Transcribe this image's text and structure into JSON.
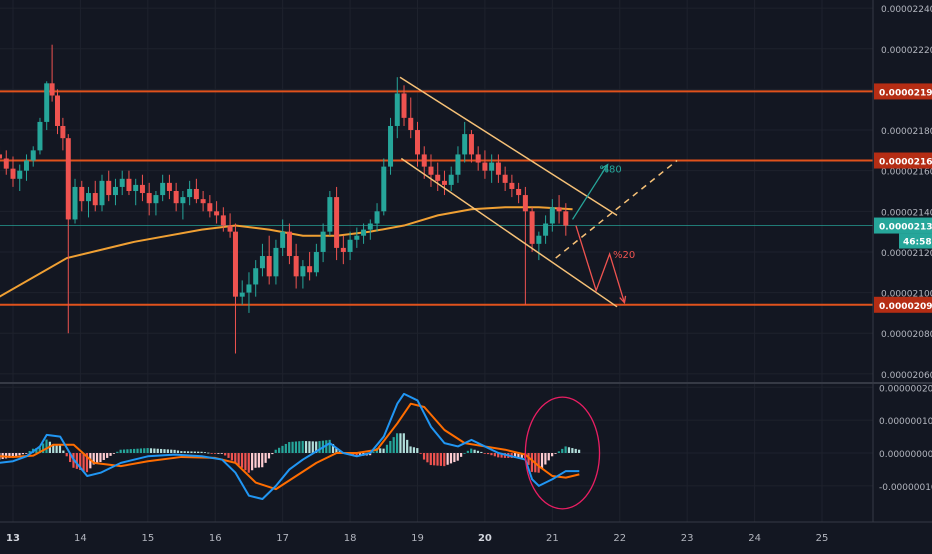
{
  "chart_data": {
    "type": "candlestick",
    "price_axis": {
      "ticks": [
        "0.00002240",
        "0.00002220",
        "0.00002200",
        "0.00002180",
        "0.00002160",
        "0.00002140",
        "0.00002120",
        "0.00002100",
        "0.00002080",
        "0.00002060"
      ],
      "range": [
        2.056e-05,
        2.244e-05
      ]
    },
    "macd_axis": {
      "ticks": [
        "0.00000020",
        "0.00000010",
        "0.00000000",
        "-0.00000010"
      ],
      "range": [
        -2.1e-07,
        2.1e-07
      ]
    },
    "time_axis": {
      "labels": [
        "13",
        "14",
        "15",
        "16",
        "17",
        "18",
        "19",
        "20",
        "21",
        "22",
        "23",
        "24",
        "25"
      ],
      "bold_labels": [
        "13",
        "20"
      ]
    },
    "horizontal_levels": [
      {
        "label": "0.00002199",
        "value": 2.199e-05,
        "color": "#e0521c"
      },
      {
        "label": "0.00002165",
        "value": 2.165e-05,
        "color": "#e0521c"
      },
      {
        "label": "0.00002094",
        "value": 2.094e-05,
        "color": "#e0521c"
      }
    ],
    "current_price": {
      "label": "0.00002133",
      "value": 2.133e-05,
      "countdown": "46:58",
      "color": "#26a69a"
    },
    "moving_average": {
      "color": "#f0a033",
      "points": [
        [
          12.8,
          2.098e-05
        ],
        [
          13.8,
          2.117e-05
        ],
        [
          14.8,
          2.125e-05
        ],
        [
          15.8,
          2.131e-05
        ],
        [
          16.3,
          2.133e-05
        ],
        [
          16.8,
          2.131e-05
        ],
        [
          17.3,
          2.128e-05
        ],
        [
          17.8,
          2.128e-05
        ],
        [
          18.3,
          2.13e-05
        ],
        [
          18.8,
          2.133e-05
        ],
        [
          19.3,
          2.138e-05
        ],
        [
          19.8,
          2.141e-05
        ],
        [
          20.3,
          2.142e-05
        ],
        [
          20.8,
          2.142e-05
        ],
        [
          21.3,
          2.141e-05
        ]
      ]
    },
    "channel": {
      "color": "#f6c177",
      "upper": [
        [
          18.74,
          2.206e-05
        ],
        [
          21.96,
          2.138e-05
        ]
      ],
      "lower": [
        [
          18.76,
          2.166e-05
        ],
        [
          21.96,
          2.093e-05
        ]
      ],
      "dashed": [
        [
          21.05,
          2.117e-05
        ],
        [
          22.85,
          2.165e-05
        ]
      ]
    },
    "annotations": [
      {
        "text": "%80",
        "color": "#26a69a",
        "x": 21.7,
        "y": 2.159e-05
      },
      {
        "text": "%20",
        "color": "#ef5350",
        "x": 21.9,
        "y": 2.117e-05
      }
    ],
    "candles": [
      [
        12.8,
        2.168e-05,
        2.172e-05,
        2.161e-05,
        2.166e-05
      ],
      [
        12.9,
        2.166e-05,
        2.17e-05,
        2.158e-05,
        2.161e-05
      ],
      [
        13.0,
        2.161e-05,
        2.167e-05,
        2.152e-05,
        2.156e-05
      ],
      [
        13.1,
        2.156e-05,
        2.163e-05,
        2.15e-05,
        2.16e-05
      ],
      [
        13.2,
        2.16e-05,
        2.168e-05,
        2.155e-05,
        2.165e-05
      ],
      [
        13.3,
        2.165e-05,
        2.172e-05,
        2.162e-05,
        2.17e-05
      ],
      [
        13.4,
        2.17e-05,
        2.186e-05,
        2.168e-05,
        2.184e-05
      ],
      [
        13.5,
        2.184e-05,
        2.204e-05,
        2.18e-05,
        2.203e-05
      ],
      [
        13.58,
        2.203e-05,
        2.222e-05,
        2.194e-05,
        2.197e-05
      ],
      [
        13.66,
        2.197e-05,
        2.2e-05,
        2.178e-05,
        2.182e-05
      ],
      [
        13.74,
        2.182e-05,
        2.186e-05,
        2.17e-05,
        2.176e-05
      ],
      [
        13.82,
        2.176e-05,
        2.178e-05,
        2.08e-05,
        2.136e-05
      ],
      [
        13.92,
        2.136e-05,
        2.156e-05,
        2.134e-05,
        2.152e-05
      ],
      [
        14.02,
        2.152e-05,
        2.155e-05,
        2.14e-05,
        2.145e-05
      ],
      [
        14.12,
        2.145e-05,
        2.152e-05,
        2.137e-05,
        2.149e-05
      ],
      [
        14.22,
        2.149e-05,
        2.155e-05,
        2.14e-05,
        2.143e-05
      ],
      [
        14.32,
        2.143e-05,
        2.158e-05,
        2.14e-05,
        2.155e-05
      ],
      [
        14.42,
        2.155e-05,
        2.16e-05,
        2.145e-05,
        2.148e-05
      ],
      [
        14.52,
        2.148e-05,
        2.156e-05,
        2.143e-05,
        2.152e-05
      ],
      [
        14.62,
        2.152e-05,
        2.16e-05,
        2.148e-05,
        2.156e-05
      ],
      [
        14.72,
        2.156e-05,
        2.16e-05,
        2.148e-05,
        2.15e-05
      ],
      [
        14.82,
        2.15e-05,
        2.156e-05,
        2.143e-05,
        2.153e-05
      ],
      [
        14.92,
        2.153e-05,
        2.158e-05,
        2.145e-05,
        2.149e-05
      ],
      [
        15.02,
        2.149e-05,
        2.154e-05,
        2.138e-05,
        2.144e-05
      ],
      [
        15.12,
        2.144e-05,
        2.15e-05,
        2.138e-05,
        2.148e-05
      ],
      [
        15.22,
        2.148e-05,
        2.158e-05,
        2.145e-05,
        2.154e-05
      ],
      [
        15.32,
        2.154e-05,
        2.158e-05,
        2.146e-05,
        2.15e-05
      ],
      [
        15.42,
        2.15e-05,
        2.154e-05,
        2.14e-05,
        2.144e-05
      ],
      [
        15.52,
        2.144e-05,
        2.15e-05,
        2.136e-05,
        2.147e-05
      ],
      [
        15.62,
        2.147e-05,
        2.155e-05,
        2.143e-05,
        2.151e-05
      ],
      [
        15.72,
        2.151e-05,
        2.156e-05,
        2.144e-05,
        2.146e-05
      ],
      [
        15.82,
        2.146e-05,
        2.15e-05,
        2.14e-05,
        2.144e-05
      ],
      [
        15.92,
        2.144e-05,
        2.148e-05,
        2.137e-05,
        2.14e-05
      ],
      [
        16.02,
        2.14e-05,
        2.145e-05,
        2.134e-05,
        2.138e-05
      ],
      [
        16.12,
        2.138e-05,
        2.142e-05,
        2.13e-05,
        2.133e-05
      ],
      [
        16.22,
        2.133e-05,
        2.139e-05,
        2.127e-05,
        2.13e-05
      ],
      [
        16.3,
        2.13e-05,
        2.134e-05,
        2.07e-05,
        2.098e-05
      ],
      [
        16.4,
        2.098e-05,
        2.106e-05,
        2.094e-05,
        2.1e-05
      ],
      [
        16.5,
        2.1e-05,
        2.11e-05,
        2.09e-05,
        2.104e-05
      ],
      [
        16.6,
        2.104e-05,
        2.116e-05,
        2.098e-05,
        2.112e-05
      ],
      [
        16.7,
        2.112e-05,
        2.124e-05,
        2.108e-05,
        2.118e-05
      ],
      [
        16.8,
        2.118e-05,
        2.128e-05,
        2.104e-05,
        2.108e-05
      ],
      [
        16.9,
        2.108e-05,
        2.126e-05,
        2.104e-05,
        2.122e-05
      ],
      [
        17.0,
        2.122e-05,
        2.136e-05,
        2.118e-05,
        2.13e-05
      ],
      [
        17.1,
        2.13e-05,
        2.134e-05,
        2.114e-05,
        2.118e-05
      ],
      [
        17.2,
        2.118e-05,
        2.124e-05,
        2.102e-05,
        2.108e-05
      ],
      [
        17.3,
        2.108e-05,
        2.116e-05,
        2.102e-05,
        2.113e-05
      ],
      [
        17.4,
        2.113e-05,
        2.12e-05,
        2.106e-05,
        2.11e-05
      ],
      [
        17.5,
        2.11e-05,
        2.124e-05,
        2.108e-05,
        2.12e-05
      ],
      [
        17.6,
        2.12e-05,
        2.134e-05,
        2.115e-05,
        2.13e-05
      ],
      [
        17.7,
        2.13e-05,
        2.15e-05,
        2.128e-05,
        2.147e-05
      ],
      [
        17.8,
        2.147e-05,
        2.152e-05,
        2.116e-05,
        2.122e-05
      ],
      [
        17.9,
        2.122e-05,
        2.128e-05,
        2.114e-05,
        2.12e-05
      ],
      [
        18.0,
        2.12e-05,
        2.13e-05,
        2.116e-05,
        2.126e-05
      ],
      [
        18.1,
        2.126e-05,
        2.132e-05,
        2.122e-05,
        2.128e-05
      ],
      [
        18.2,
        2.128e-05,
        2.134e-05,
        2.124e-05,
        2.131e-05
      ],
      [
        18.3,
        2.131e-05,
        2.136e-05,
        2.126e-05,
        2.134e-05
      ],
      [
        18.4,
        2.134e-05,
        2.144e-05,
        2.13e-05,
        2.14e-05
      ],
      [
        18.5,
        2.14e-05,
        2.166e-05,
        2.138e-05,
        2.162e-05
      ],
      [
        18.6,
        2.162e-05,
        2.186e-05,
        2.158e-05,
        2.182e-05
      ],
      [
        18.7,
        2.182e-05,
        2.206e-05,
        2.176e-05,
        2.198e-05
      ],
      [
        18.8,
        2.198e-05,
        2.202e-05,
        2.182e-05,
        2.186e-05
      ],
      [
        18.9,
        2.186e-05,
        2.196e-05,
        2.176e-05,
        2.18e-05
      ],
      [
        19.0,
        2.18e-05,
        2.184e-05,
        2.162e-05,
        2.168e-05
      ],
      [
        19.1,
        2.168e-05,
        2.172e-05,
        2.156e-05,
        2.162e-05
      ],
      [
        19.2,
        2.162e-05,
        2.168e-05,
        2.152e-05,
        2.158e-05
      ],
      [
        19.3,
        2.158e-05,
        2.164e-05,
        2.15e-05,
        2.155e-05
      ],
      [
        19.4,
        2.155e-05,
        2.16e-05,
        2.148e-05,
        2.153e-05
      ],
      [
        19.5,
        2.153e-05,
        2.162e-05,
        2.15e-05,
        2.158e-05
      ],
      [
        19.6,
        2.158e-05,
        2.172e-05,
        2.154e-05,
        2.168e-05
      ],
      [
        19.7,
        2.168e-05,
        2.184e-05,
        2.164e-05,
        2.178e-05
      ],
      [
        19.8,
        2.178e-05,
        2.18e-05,
        2.164e-05,
        2.168e-05
      ],
      [
        19.9,
        2.168e-05,
        2.172e-05,
        2.16e-05,
        2.164e-05
      ],
      [
        20.0,
        2.164e-05,
        2.17e-05,
        2.156e-05,
        2.16e-05
      ],
      [
        20.1,
        2.16e-05,
        2.168e-05,
        2.154e-05,
        2.164e-05
      ],
      [
        20.2,
        2.164e-05,
        2.168e-05,
        2.154e-05,
        2.158e-05
      ],
      [
        20.3,
        2.158e-05,
        2.162e-05,
        2.15e-05,
        2.154e-05
      ],
      [
        20.4,
        2.154e-05,
        2.158e-05,
        2.147e-05,
        2.151e-05
      ],
      [
        20.5,
        2.151e-05,
        2.154e-05,
        2.144e-05,
        2.148e-05
      ],
      [
        20.6,
        2.148e-05,
        2.152e-05,
        2.094e-05,
        2.14e-05
      ],
      [
        20.7,
        2.14e-05,
        2.142e-05,
        2.12e-05,
        2.124e-05
      ],
      [
        20.8,
        2.124e-05,
        2.13e-05,
        2.116e-05,
        2.128e-05
      ],
      [
        20.9,
        2.128e-05,
        2.138e-05,
        2.124e-05,
        2.134e-05
      ],
      [
        21.0,
        2.134e-05,
        2.146e-05,
        2.13e-05,
        2.142e-05
      ],
      [
        21.1,
        2.142e-05,
        2.148e-05,
        2.134e-05,
        2.14e-05
      ],
      [
        21.2,
        2.14e-05,
        2.144e-05,
        2.128e-05,
        2.133e-05
      ]
    ],
    "macd": {
      "colors": {
        "macd": "#2196f3",
        "signal": "#ff6d00",
        "hist_pos": "#26a69a",
        "hist_pos_light": "#b2dfdb",
        "hist_neg": "#ef5350",
        "hist_neg_light": "#ffcdd2"
      },
      "macd_line": [
        [
          12.8,
          -3e-08
        ],
        [
          13.0,
          -2.5e-08
        ],
        [
          13.2,
          -1e-08
        ],
        [
          13.4,
          2e-08
        ],
        [
          13.5,
          5.5e-08
        ],
        [
          13.7,
          5e-08
        ],
        [
          13.9,
          -2e-08
        ],
        [
          14.1,
          -7e-08
        ],
        [
          14.3,
          -6e-08
        ],
        [
          14.6,
          -3e-08
        ],
        [
          15.0,
          -1e-08
        ],
        [
          15.4,
          -5e-09
        ],
        [
          15.8,
          -1e-08
        ],
        [
          16.1,
          -2e-08
        ],
        [
          16.3,
          -6e-08
        ],
        [
          16.5,
          -1.3e-07
        ],
        [
          16.7,
          -1.4e-07
        ],
        [
          16.9,
          -1e-07
        ],
        [
          17.1,
          -5e-08
        ],
        [
          17.3,
          -2e-08
        ],
        [
          17.5,
          5e-09
        ],
        [
          17.7,
          3e-08
        ],
        [
          17.9,
          0.0
        ],
        [
          18.1,
          -1e-08
        ],
        [
          18.3,
          0.0
        ],
        [
          18.5,
          5e-08
        ],
        [
          18.7,
          1.5e-07
        ],
        [
          18.8,
          1.8e-07
        ],
        [
          19.0,
          1.6e-07
        ],
        [
          19.2,
          8e-08
        ],
        [
          19.4,
          3e-08
        ],
        [
          19.6,
          2e-08
        ],
        [
          19.8,
          4e-08
        ],
        [
          20.0,
          2e-08
        ],
        [
          20.2,
          0.0
        ],
        [
          20.4,
          -1e-08
        ],
        [
          20.6,
          -2e-08
        ],
        [
          20.7,
          -8e-08
        ],
        [
          20.8,
          -1e-07
        ],
        [
          21.0,
          -8e-08
        ],
        [
          21.2,
          -5.5e-08
        ],
        [
          21.4,
          -5.5e-08
        ]
      ],
      "signal_line": [
        [
          12.8,
          -1e-08
        ],
        [
          13.0,
          -1.2e-08
        ],
        [
          13.3,
          -8e-09
        ],
        [
          13.6,
          2.5e-08
        ],
        [
          13.9,
          2.5e-08
        ],
        [
          14.2,
          -3e-08
        ],
        [
          14.6,
          -4e-08
        ],
        [
          15.0,
          -2.5e-08
        ],
        [
          15.5,
          -1.2e-08
        ],
        [
          16.0,
          -1.5e-08
        ],
        [
          16.3,
          -3e-08
        ],
        [
          16.6,
          -9e-08
        ],
        [
          16.9,
          -1.1e-07
        ],
        [
          17.2,
          -7e-08
        ],
        [
          17.5,
          -3e-08
        ],
        [
          17.8,
          0.0
        ],
        [
          18.1,
          0.0
        ],
        [
          18.4,
          1e-08
        ],
        [
          18.7,
          9e-08
        ],
        [
          18.9,
          1.5e-07
        ],
        [
          19.1,
          1.4e-07
        ],
        [
          19.4,
          7e-08
        ],
        [
          19.7,
          3e-08
        ],
        [
          20.0,
          2e-08
        ],
        [
          20.3,
          1e-08
        ],
        [
          20.6,
          -5e-09
        ],
        [
          20.8,
          -4e-08
        ],
        [
          21.0,
          -7e-08
        ],
        [
          21.2,
          -7.5e-08
        ],
        [
          21.4,
          -6.5e-08
        ]
      ],
      "circle": {
        "color": "#e91e63",
        "x": 21.15,
        "y": -0.0,
        "rx": 0.55,
        "ry": 1.7e-07
      }
    }
  }
}
